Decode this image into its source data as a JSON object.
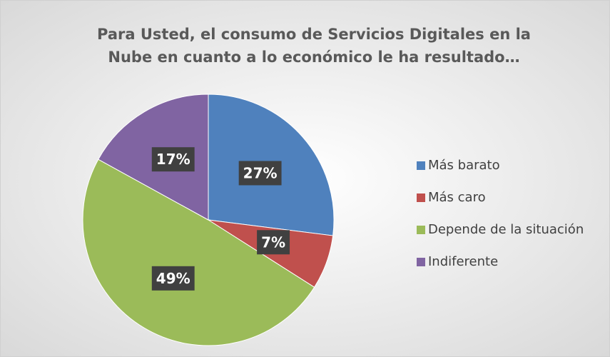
{
  "chart_data": {
    "type": "pie",
    "title": "Para Usted, el consumo de Servicios Digitales en la Nube en cuanto a lo económico le ha resultado…",
    "categories": [
      "Más barato",
      "Más caro",
      "Depende de la situación",
      "Indiferente"
    ],
    "values": [
      27,
      7,
      49,
      17
    ],
    "value_labels": [
      "27%",
      "7%",
      "49%",
      "17%"
    ],
    "colors": [
      "#4f81bd",
      "#c0504d",
      "#9bbb59",
      "#8064a2"
    ],
    "legend": "right"
  }
}
